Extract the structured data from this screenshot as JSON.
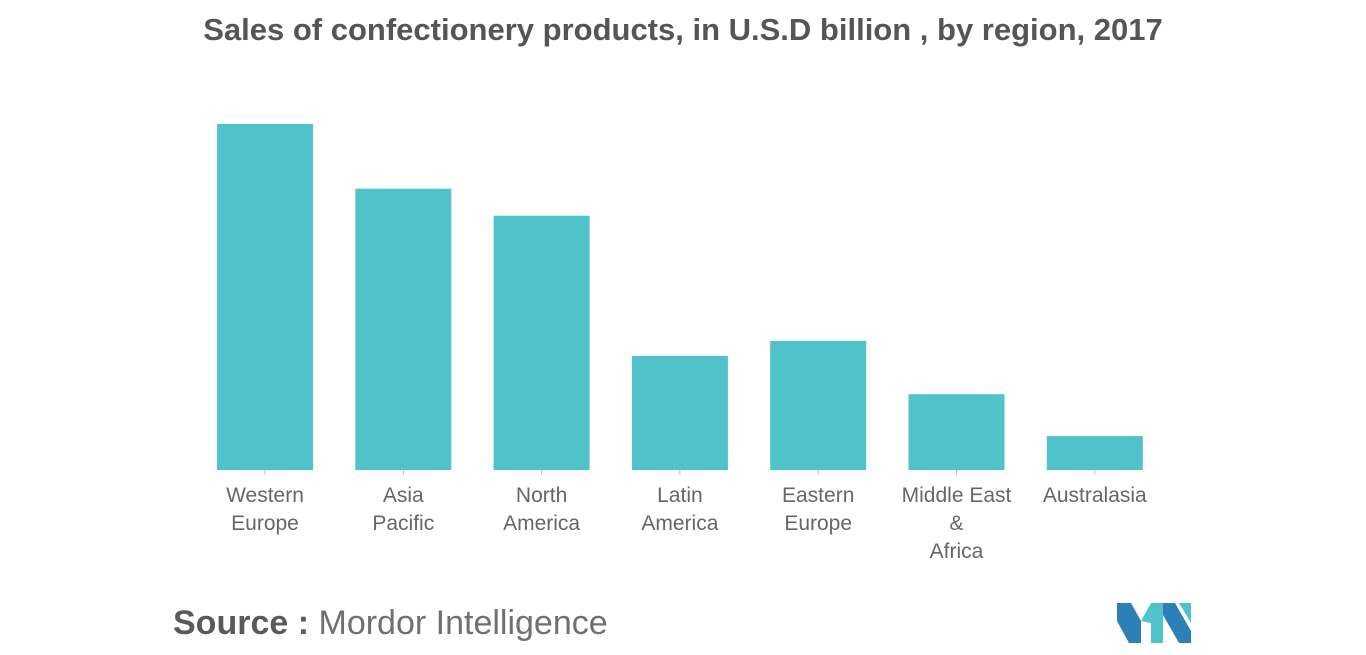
{
  "chart_data": {
    "type": "bar",
    "title": "Sales of confectionery products, in U.S.D billion , by region, 2017",
    "categories": [
      [
        "Western",
        "Europe"
      ],
      [
        "Asia",
        "Pacific"
      ],
      [
        "North",
        "America"
      ],
      [
        "Latin",
        "America"
      ],
      [
        "Eastern",
        "Europe"
      ],
      [
        "Middle East",
        "&",
        "Africa"
      ],
      [
        "Australasia"
      ]
    ],
    "values": [
      100,
      81.3,
      73.5,
      33,
      37.3,
      21.9,
      9.8
    ],
    "ylim": [
      0,
      100
    ],
    "xlabel": "",
    "ylabel": "",
    "grid": false,
    "legend": "none",
    "bar_color": "#50c2ca"
  },
  "source": {
    "prefix": "Source :",
    "name": "Mordor Intelligence"
  },
  "logo": {
    "icon": "mordor-intelligence-logo",
    "colors": [
      "#2d7fb8",
      "#50c2ca"
    ]
  }
}
